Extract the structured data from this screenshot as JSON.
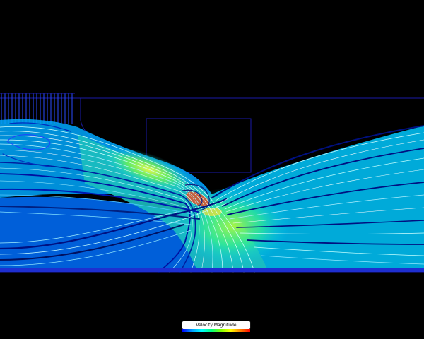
{
  "legend": {
    "title": "Velocity Magnitude"
  },
  "watermark": {
    "text": ""
  },
  "colors": {
    "background": "#000000",
    "geometry_outline": "#1a1aa8",
    "low_velocity": "#0000ff",
    "mid_velocity": "#00e0ff",
    "high_velocity": "#ff0000"
  }
}
